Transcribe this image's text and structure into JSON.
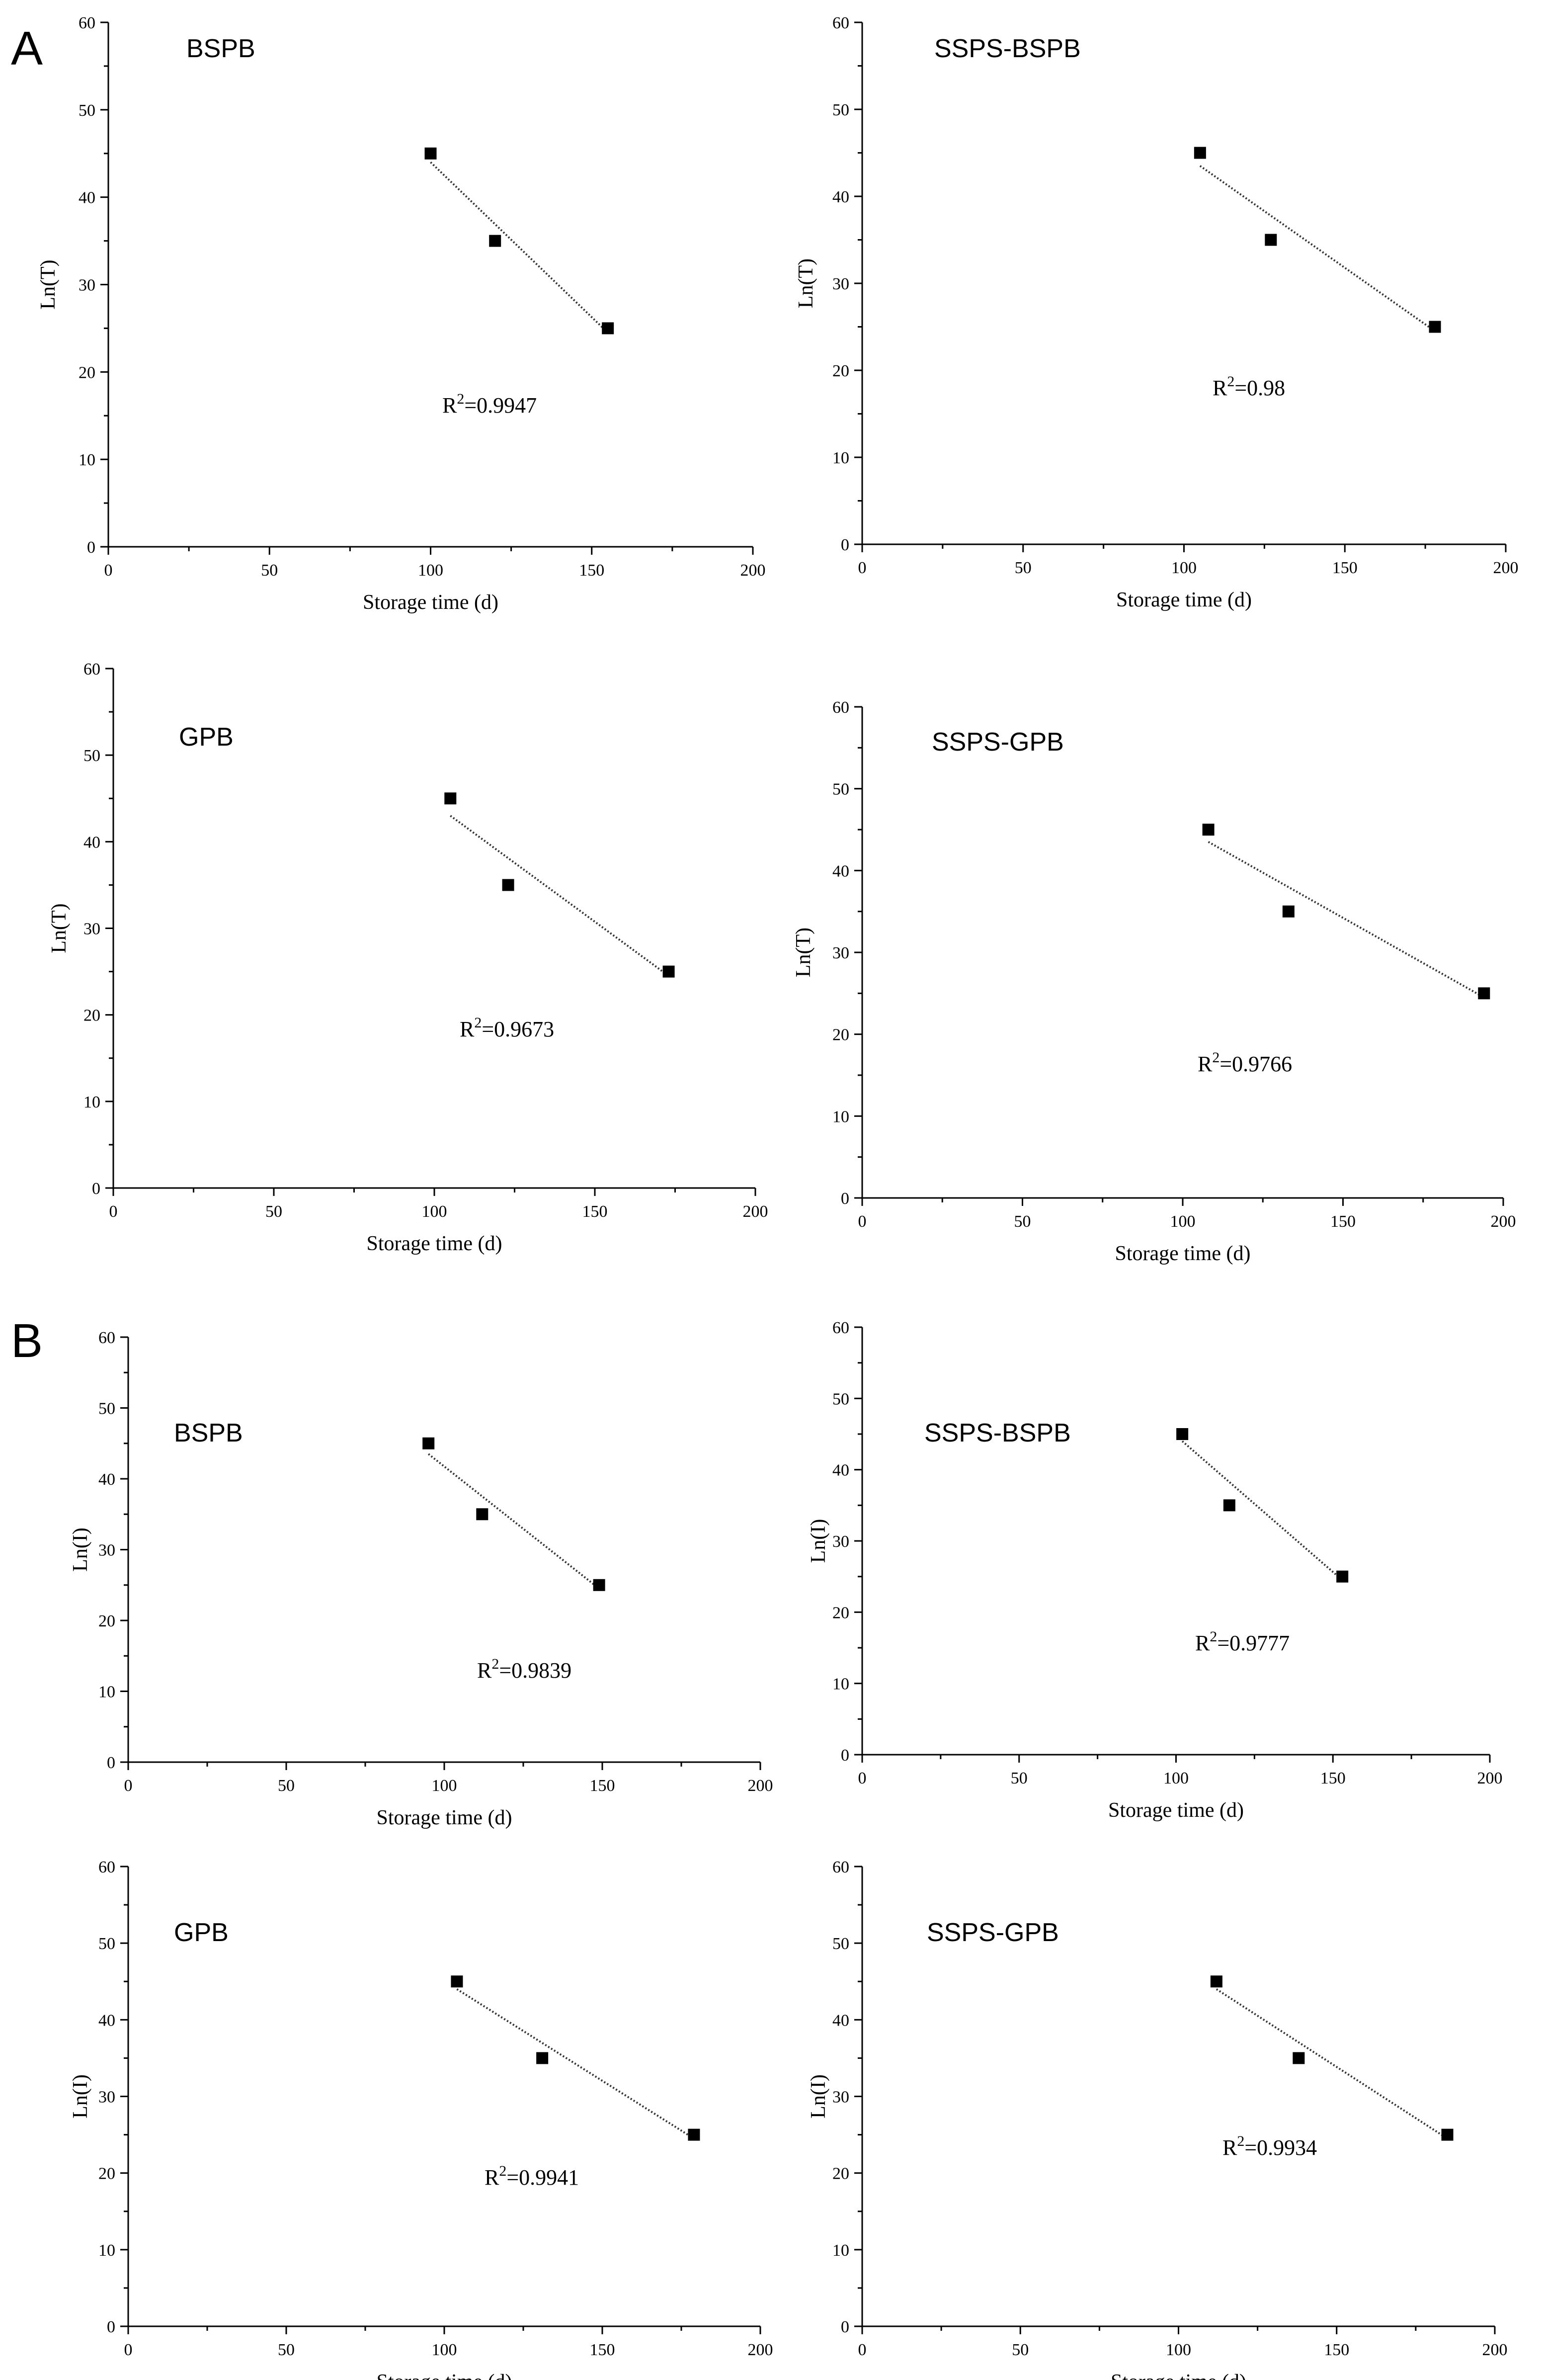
{
  "panels": [
    {
      "letter": "A"
    },
    {
      "letter": "B"
    }
  ],
  "chart_data": [
    {
      "type": "scatter",
      "panel": "A",
      "title": "BSPB",
      "xlabel": "Storage time (d)",
      "ylabel": "Ln(T)",
      "xlim": [
        0,
        200
      ],
      "ylim": [
        0,
        60
      ],
      "xticks": [
        0,
        50,
        100,
        150,
        200
      ],
      "yticks": [
        0,
        10,
        20,
        30,
        40,
        50,
        60
      ],
      "x": [
        100,
        120,
        155
      ],
      "y": [
        45,
        35,
        25
      ],
      "fit": {
        "x": [
          100,
          155
        ],
        "y": [
          44,
          24.5
        ]
      },
      "r2_prefix": "R",
      "r2_sup": "2",
      "r2_value": "=0.9947"
    },
    {
      "type": "scatter",
      "panel": "A",
      "title": "SSPS-BSPB",
      "xlabel": "Storage time (d)",
      "ylabel": "Ln(T)",
      "xlim": [
        0,
        200
      ],
      "ylim": [
        0,
        60
      ],
      "xticks": [
        0,
        50,
        100,
        150,
        200
      ],
      "yticks": [
        0,
        10,
        20,
        30,
        40,
        50,
        60
      ],
      "x": [
        105,
        127,
        178
      ],
      "y": [
        45,
        35,
        25
      ],
      "fit": {
        "x": [
          105,
          178
        ],
        "y": [
          43.5,
          24.5
        ]
      },
      "r2_prefix": "R",
      "r2_sup": "2",
      "r2_value": "=0.98"
    },
    {
      "type": "scatter",
      "panel": "A",
      "title": "GPB",
      "xlabel": "Storage time (d)",
      "ylabel": "Ln(T)",
      "xlim": [
        0,
        200
      ],
      "ylim": [
        0,
        60
      ],
      "xticks": [
        0,
        50,
        100,
        150,
        200
      ],
      "yticks": [
        0,
        10,
        20,
        30,
        40,
        50,
        60
      ],
      "x": [
        105,
        123,
        173
      ],
      "y": [
        45,
        35,
        25
      ],
      "fit": {
        "x": [
          105,
          173
        ],
        "y": [
          43,
          24.5
        ]
      },
      "r2_prefix": "R",
      "r2_sup": "2",
      "r2_value": "=0.9673"
    },
    {
      "type": "scatter",
      "panel": "A",
      "title": "SSPS-GPB",
      "xlabel": "Storage time (d)",
      "ylabel": "Ln(T)",
      "xlim": [
        0,
        200
      ],
      "ylim": [
        0,
        60
      ],
      "xticks": [
        0,
        50,
        100,
        150,
        200
      ],
      "yticks": [
        0,
        10,
        20,
        30,
        40,
        50,
        60
      ],
      "x": [
        108,
        133,
        194
      ],
      "y": [
        45,
        35,
        25
      ],
      "fit": {
        "x": [
          108,
          194
        ],
        "y": [
          43.5,
          24.5
        ]
      },
      "r2_prefix": "R",
      "r2_sup": "2",
      "r2_value": "=0.9766"
    },
    {
      "type": "scatter",
      "panel": "B",
      "title": "BSPB",
      "xlabel": "Storage time (d)",
      "ylabel": "Ln(I)",
      "xlim": [
        0,
        200
      ],
      "ylim": [
        0,
        60
      ],
      "xticks": [
        0,
        50,
        100,
        150,
        200
      ],
      "yticks": [
        0,
        10,
        20,
        30,
        40,
        50,
        60
      ],
      "x": [
        95,
        112,
        149
      ],
      "y": [
        45,
        35,
        25
      ],
      "fit": {
        "x": [
          95,
          149
        ],
        "y": [
          43.5,
          24.5
        ]
      },
      "r2_prefix": "R",
      "r2_sup": "2",
      "r2_value": "=0.9839"
    },
    {
      "type": "scatter",
      "panel": "B",
      "title": "SSPS-BSPB",
      "xlabel": "Storage time (d)",
      "ylabel": "Ln(I)",
      "xlim": [
        0,
        200
      ],
      "ylim": [
        0,
        60
      ],
      "xticks": [
        0,
        50,
        100,
        150,
        200
      ],
      "yticks": [
        0,
        10,
        20,
        30,
        40,
        50,
        60
      ],
      "x": [
        102,
        117,
        153
      ],
      "y": [
        45,
        35,
        25
      ],
      "fit": {
        "x": [
          102,
          153
        ],
        "y": [
          44,
          24.5
        ]
      },
      "r2_prefix": "R",
      "r2_sup": "2",
      "r2_value": "=0.9777"
    },
    {
      "type": "scatter",
      "panel": "B",
      "title": "GPB",
      "xlabel": "Storage time (d)",
      "ylabel": "Ln(I)",
      "xlim": [
        0,
        200
      ],
      "ylim": [
        0,
        60
      ],
      "xticks": [
        0,
        50,
        100,
        150,
        200
      ],
      "yticks": [
        0,
        10,
        20,
        30,
        40,
        50,
        60
      ],
      "x": [
        104,
        131,
        179
      ],
      "y": [
        45,
        35,
        25
      ],
      "fit": {
        "x": [
          104,
          179
        ],
        "y": [
          44,
          24.5
        ]
      },
      "r2_prefix": "R",
      "r2_sup": "2",
      "r2_value": "=0.9941"
    },
    {
      "type": "scatter",
      "panel": "B",
      "title": "SSPS-GPB",
      "xlabel": "Storage time (d)",
      "ylabel": "Ln(I)",
      "xlim": [
        0,
        200
      ],
      "ylim": [
        0,
        60
      ],
      "xticks": [
        0,
        50,
        100,
        150,
        200
      ],
      "yticks": [
        0,
        10,
        20,
        30,
        40,
        50,
        60
      ],
      "x": [
        112,
        138,
        185
      ],
      "y": [
        45,
        35,
        25
      ],
      "fit": {
        "x": [
          112,
          185
        ],
        "y": [
          44,
          24.5
        ]
      },
      "r2_prefix": "R",
      "r2_sup": "2",
      "r2_value": "=0.9934"
    }
  ]
}
